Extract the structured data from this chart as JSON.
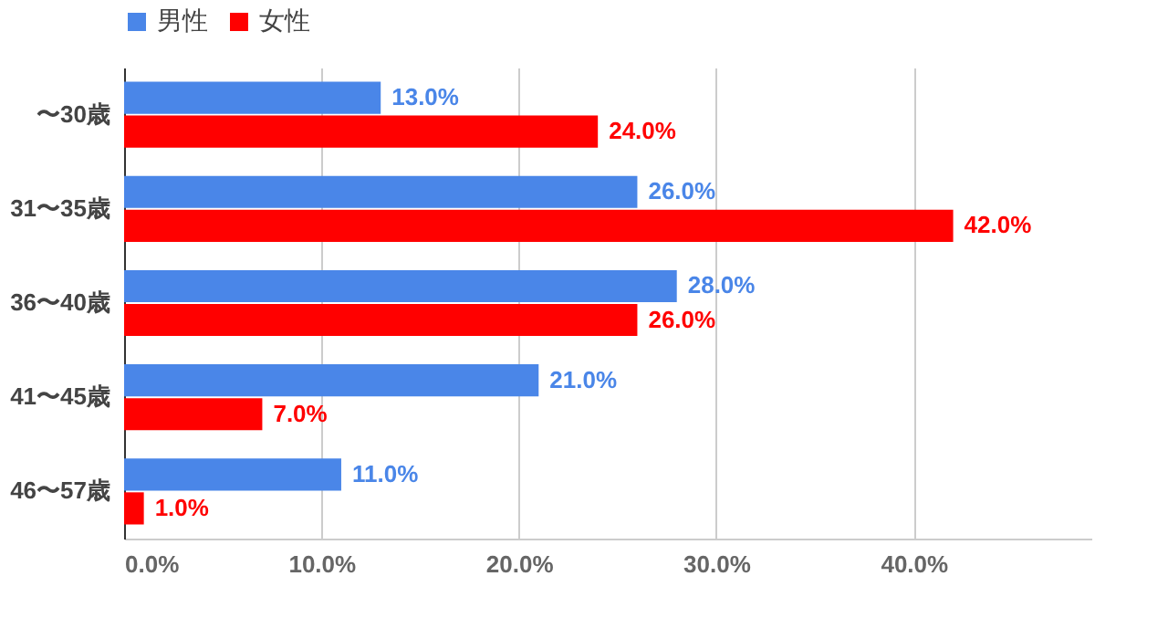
{
  "chart_data": {
    "type": "bar",
    "orientation": "horizontal",
    "categories": [
      "〜30歳",
      "31〜35歳",
      "36〜40歳",
      "41〜45歳",
      "46〜57歳"
    ],
    "series": [
      {
        "name": "男性",
        "color": "#4a86e8",
        "values": [
          13,
          26,
          28,
          21,
          11
        ],
        "value_labels": [
          "13.0%",
          "26.0%",
          "28.0%",
          "21.0%",
          "11.0%"
        ]
      },
      {
        "name": "女性",
        "color": "#ff0000",
        "values": [
          24,
          42,
          26,
          7,
          1
        ],
        "value_labels": [
          "24.0%",
          "42.0%",
          "26.0%",
          "7.0%",
          "1.0%"
        ]
      }
    ],
    "xlim": [
      0,
      49
    ],
    "xticks": [
      {
        "value": 0,
        "label": "0.0%"
      },
      {
        "value": 10,
        "label": "10.0%"
      },
      {
        "value": 20,
        "label": "20.0%"
      },
      {
        "value": 30,
        "label": "30.0%"
      },
      {
        "value": 40,
        "label": "40.0%"
      }
    ],
    "grid": "x",
    "legend": "top"
  }
}
